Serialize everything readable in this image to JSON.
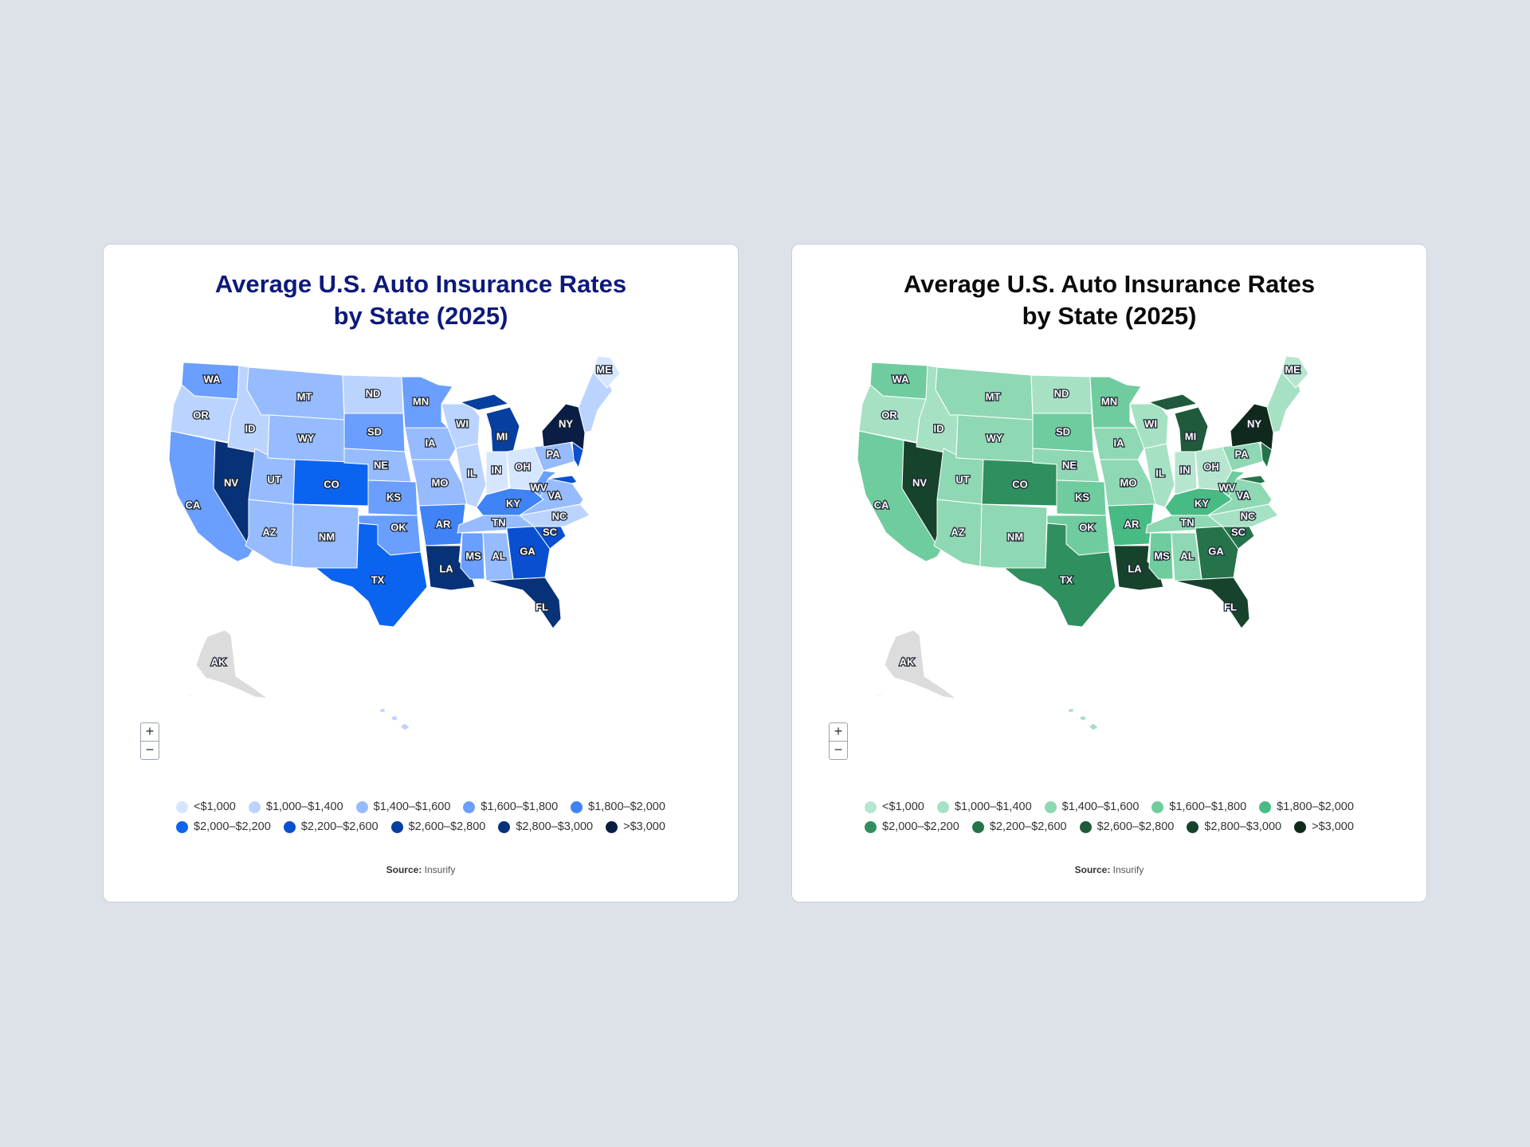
{
  "cards": [
    {
      "id": "blue",
      "title_line1": "Average U.S. Auto Insurance Rates",
      "title_line2": "by State (2025)",
      "title_color": "#0d1a7a",
      "palette": [
        "#d6e6ff",
        "#bbd4ff",
        "#96bbff",
        "#6a9eff",
        "#3f83f7",
        "#0b64f0",
        "#0a4fd0",
        "#063fa0",
        "#073278",
        "#0a1d44"
      ],
      "unknown_color": "#dcdcdc",
      "zoom_in": "+",
      "zoom_out": "−",
      "source_label": "Source:",
      "source_value": "Insurify"
    },
    {
      "id": "green",
      "title_line1": "Average U.S. Auto Insurance Rates",
      "title_line2": "by State (2025)",
      "title_color": "#0a0a0a",
      "palette": [
        "#b7e6d0",
        "#a6e1c4",
        "#8fd8b4",
        "#6fcc9e",
        "#48bb84",
        "#2f8f5e",
        "#26734b",
        "#1e5a3b",
        "#17422c",
        "#0f2a1c"
      ],
      "unknown_color": "#dcdcdc",
      "zoom_in": "+",
      "zoom_out": "−",
      "source_label": "Source:",
      "source_value": "Insurify"
    }
  ],
  "legend": [
    "<$1,000",
    "$1,000–$1,400",
    "$1,400–$1,600",
    "$1,600–$1,800",
    "$1,800–$2,000",
    "$2,000–$2,200",
    "$2,200–$2,600",
    "$2,600–$2,800",
    "$2,800–$3,000",
    ">$3,000"
  ],
  "chart_data": {
    "type": "choropleth",
    "title": "Average U.S. Auto Insurance Rates by State (2025)",
    "source": "Insurify",
    "bins": [
      "<$1,000",
      "$1,000–$1,400",
      "$1,400–$1,600",
      "$1,600–$1,800",
      "$1,800–$2,000",
      "$2,000–$2,200",
      "$2,200–$2,600",
      "$2,600–$2,800",
      "$2,800–$3,000",
      ">$3,000"
    ],
    "states": [
      {
        "code": "WA",
        "bin": 3
      },
      {
        "code": "OR",
        "bin": 1
      },
      {
        "code": "CA",
        "bin": 3
      },
      {
        "code": "NV",
        "bin": 8
      },
      {
        "code": "ID",
        "bin": 1
      },
      {
        "code": "MT",
        "bin": 2
      },
      {
        "code": "WY",
        "bin": 2
      },
      {
        "code": "UT",
        "bin": 2
      },
      {
        "code": "AZ",
        "bin": 2
      },
      {
        "code": "CO",
        "bin": 5
      },
      {
        "code": "NM",
        "bin": 2
      },
      {
        "code": "ND",
        "bin": 1
      },
      {
        "code": "SD",
        "bin": 3
      },
      {
        "code": "NE",
        "bin": 2
      },
      {
        "code": "KS",
        "bin": 3
      },
      {
        "code": "OK",
        "bin": 3
      },
      {
        "code": "TX",
        "bin": 5
      },
      {
        "code": "MN",
        "bin": 3
      },
      {
        "code": "IA",
        "bin": 2
      },
      {
        "code": "MO",
        "bin": 2
      },
      {
        "code": "AR",
        "bin": 4
      },
      {
        "code": "LA",
        "bin": 8
      },
      {
        "code": "WI",
        "bin": 1
      },
      {
        "code": "IL",
        "bin": 1
      },
      {
        "code": "MI",
        "bin": 7
      },
      {
        "code": "IN",
        "bin": 0
      },
      {
        "code": "OH",
        "bin": 0
      },
      {
        "code": "KY",
        "bin": 4
      },
      {
        "code": "TN",
        "bin": 2
      },
      {
        "code": "MS",
        "bin": 3
      },
      {
        "code": "AL",
        "bin": 2
      },
      {
        "code": "GA",
        "bin": 6
      },
      {
        "code": "FL",
        "bin": 8
      },
      {
        "code": "SC",
        "bin": 6
      },
      {
        "code": "NC",
        "bin": 1
      },
      {
        "code": "VA",
        "bin": 2
      },
      {
        "code": "WV",
        "bin": 3
      },
      {
        "code": "PA",
        "bin": 2
      },
      {
        "code": "NY",
        "bin": 9
      },
      {
        "code": "ME",
        "bin": 0
      },
      {
        "code": "AK",
        "bin": null
      },
      {
        "code": "HI",
        "bin": 1
      }
    ]
  }
}
